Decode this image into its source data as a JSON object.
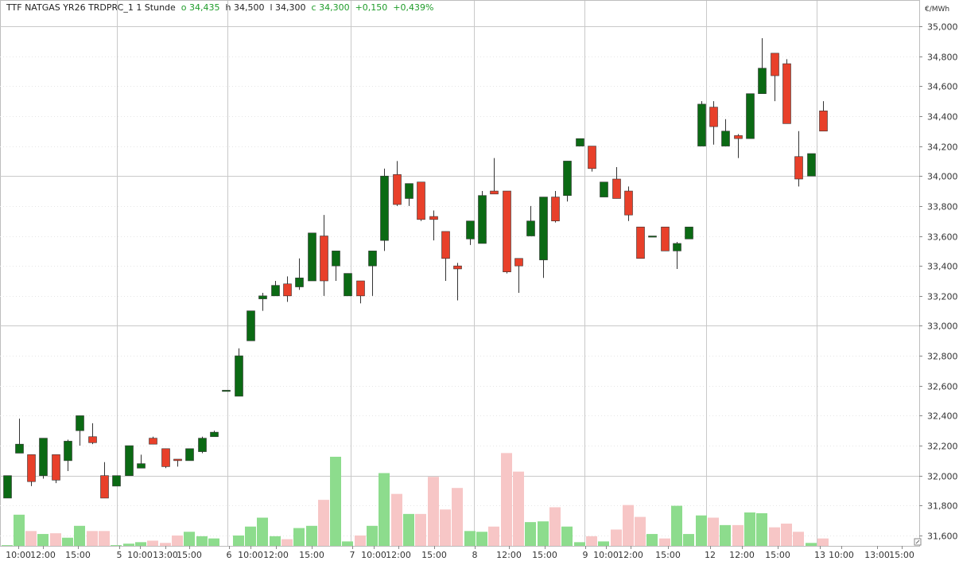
{
  "header": {
    "instrument": "TTF NATGAS YR26 TRDPRC_1",
    "interval": "1 Stunde",
    "open": "o 34,435",
    "high": "h 34,500",
    "low": "l 34,300",
    "close": "c 34,300",
    "change": "+0,150",
    "change_pct": "+0,439%"
  },
  "colors": {
    "up_candle": "#0b6a14",
    "down_candle": "#e8402a",
    "up_volume": "#8ddc8d",
    "down_volume": "#f7c6c6",
    "header_green": "#1f9c2a"
  },
  "chart_data": {
    "type": "candlestick",
    "unit": "€/MWh",
    "ylim": [
      31560,
      35080
    ],
    "y_ticks": [
      "35,000",
      "34,800",
      "34,600",
      "34,400",
      "34,200",
      "34,000",
      "33,800",
      "33,600",
      "33,400",
      "33,200",
      "33,000",
      "32,800",
      "32,600",
      "32,400",
      "32,200",
      "32,000",
      "31,800",
      "31,600"
    ],
    "y_tick_values": [
      35000,
      34800,
      34600,
      34400,
      34200,
      34000,
      33800,
      33600,
      33400,
      33200,
      33000,
      32800,
      32600,
      32400,
      32200,
      32000,
      31800,
      31600
    ],
    "x_labels": [
      "10:00",
      "12:00",
      "15:00",
      "5",
      "10:00",
      "13:00",
      "15:00",
      "6",
      "10:00",
      "12:00",
      "15:00",
      "7",
      "10:00",
      "12:00",
      "15:00",
      "8",
      "12:00",
      "15:00",
      "9",
      "10:00",
      "12:00",
      "15:00",
      "12",
      "12:00",
      "15:00",
      "13",
      "10:00",
      "13:00",
      "15:00"
    ],
    "volume_axis_max": 1500,
    "candles": [
      {
        "o": 31850,
        "h": 32000,
        "l": 31850,
        "c": 32000,
        "v": 10
      },
      {
        "o": 32150,
        "h": 32380,
        "l": 32150,
        "c": 32210,
        "v": 420
      },
      {
        "o": 32140,
        "h": 32140,
        "l": 31930,
        "c": 31960,
        "v": 200
      },
      {
        "o": 32000,
        "h": 32250,
        "l": 31980,
        "c": 32250,
        "v": 160
      },
      {
        "o": 32140,
        "h": 32140,
        "l": 31950,
        "c": 31970,
        "v": 170
      },
      {
        "o": 32100,
        "h": 32240,
        "l": 32030,
        "c": 32230,
        "v": 110
      },
      {
        "o": 32300,
        "h": 32400,
        "l": 32200,
        "c": 32400,
        "v": 270
      },
      {
        "o": 32260,
        "h": 32350,
        "l": 32210,
        "c": 32220,
        "v": 200
      },
      {
        "o": 32000,
        "h": 32090,
        "l": 31850,
        "c": 31850,
        "v": 200
      },
      {
        "o": 31930,
        "h": 32000,
        "l": 31930,
        "c": 32000,
        "v": 10
      },
      {
        "o": 32000,
        "h": 32200,
        "l": 32000,
        "c": 32200,
        "v": 30
      },
      {
        "o": 32050,
        "h": 32140,
        "l": 32050,
        "c": 32080,
        "v": 50
      },
      {
        "o": 32250,
        "h": 32260,
        "l": 32210,
        "c": 32210,
        "v": 70
      },
      {
        "o": 32180,
        "h": 32180,
        "l": 32050,
        "c": 32060,
        "v": 40
      },
      {
        "o": 32110,
        "h": 32110,
        "l": 32060,
        "c": 32100,
        "v": 140
      },
      {
        "o": 32100,
        "h": 32180,
        "l": 32100,
        "c": 32180,
        "v": 190
      },
      {
        "o": 32160,
        "h": 32260,
        "l": 32150,
        "c": 32250,
        "v": 130
      },
      {
        "o": 32260,
        "h": 32300,
        "l": 32260,
        "c": 32290,
        "v": 100
      },
      {
        "o": 32570,
        "h": 32570,
        "l": 32570,
        "c": 32570,
        "v": 0
      },
      {
        "o": 32530,
        "h": 32850,
        "l": 32530,
        "c": 32800,
        "v": 140
      },
      {
        "o": 32900,
        "h": 33100,
        "l": 32900,
        "c": 33100,
        "v": 260
      },
      {
        "o": 33180,
        "h": 33220,
        "l": 33100,
        "c": 33200,
        "v": 380
      },
      {
        "o": 33200,
        "h": 33300,
        "l": 33200,
        "c": 33270,
        "v": 130
      },
      {
        "o": 33280,
        "h": 33330,
        "l": 33160,
        "c": 33200,
        "v": 90
      },
      {
        "o": 33260,
        "h": 33450,
        "l": 33240,
        "c": 33320,
        "v": 240
      },
      {
        "o": 33300,
        "h": 33620,
        "l": 33300,
        "c": 33620,
        "v": 270
      },
      {
        "o": 33600,
        "h": 33740,
        "l": 33200,
        "c": 33300,
        "v": 620
      },
      {
        "o": 33400,
        "h": 33500,
        "l": 33300,
        "c": 33500,
        "v": 1200
      },
      {
        "o": 33200,
        "h": 33350,
        "l": 33200,
        "c": 33350,
        "v": 60
      },
      {
        "o": 33300,
        "h": 33300,
        "l": 33150,
        "c": 33200,
        "v": 140
      },
      {
        "o": 33400,
        "h": 33500,
        "l": 33200,
        "c": 33500,
        "v": 270
      },
      {
        "o": 33570,
        "h": 34050,
        "l": 33500,
        "c": 34000,
        "v": 980
      },
      {
        "o": 34010,
        "h": 34100,
        "l": 33800,
        "c": 33810,
        "v": 700
      },
      {
        "o": 33850,
        "h": 33950,
        "l": 33800,
        "c": 33950,
        "v": 430
      },
      {
        "o": 33960,
        "h": 33960,
        "l": 33700,
        "c": 33710,
        "v": 430
      },
      {
        "o": 33730,
        "h": 33770,
        "l": 33570,
        "c": 33710,
        "v": 930
      },
      {
        "o": 33630,
        "h": 33630,
        "l": 33300,
        "c": 33450,
        "v": 490
      },
      {
        "o": 33400,
        "h": 33420,
        "l": 33170,
        "c": 33380,
        "v": 780
      },
      {
        "o": 33580,
        "h": 33700,
        "l": 33540,
        "c": 33700,
        "v": 200
      },
      {
        "o": 33550,
        "h": 33900,
        "l": 33550,
        "c": 33870,
        "v": 190
      },
      {
        "o": 33900,
        "h": 34120,
        "l": 33880,
        "c": 33880,
        "v": 260
      },
      {
        "o": 33900,
        "h": 33900,
        "l": 33350,
        "c": 33360,
        "v": 1250
      },
      {
        "o": 33450,
        "h": 33450,
        "l": 33220,
        "c": 33400,
        "v": 1000
      },
      {
        "o": 33600,
        "h": 33800,
        "l": 33600,
        "c": 33700,
        "v": 320
      },
      {
        "o": 33440,
        "h": 33860,
        "l": 33320,
        "c": 33860,
        "v": 330
      },
      {
        "o": 33860,
        "h": 33900,
        "l": 33690,
        "c": 33700,
        "v": 520
      },
      {
        "o": 33870,
        "h": 34100,
        "l": 33830,
        "c": 34100,
        "v": 260
      },
      {
        "o": 34200,
        "h": 34250,
        "l": 34200,
        "c": 34250,
        "v": 50
      },
      {
        "o": 34200,
        "h": 34200,
        "l": 34030,
        "c": 34050,
        "v": 130
      },
      {
        "o": 33860,
        "h": 33960,
        "l": 33860,
        "c": 33960,
        "v": 60
      },
      {
        "o": 33980,
        "h": 34060,
        "l": 33850,
        "c": 33850,
        "v": 220
      },
      {
        "o": 33900,
        "h": 33930,
        "l": 33700,
        "c": 33740,
        "v": 550
      },
      {
        "o": 33660,
        "h": 33660,
        "l": 33450,
        "c": 33450,
        "v": 390
      },
      {
        "o": 33600,
        "h": 33600,
        "l": 33600,
        "c": 33600,
        "v": 160
      },
      {
        "o": 33660,
        "h": 33660,
        "l": 33500,
        "c": 33500,
        "v": 100
      },
      {
        "o": 33500,
        "h": 33560,
        "l": 33380,
        "c": 33550,
        "v": 540
      },
      {
        "o": 33580,
        "h": 33660,
        "l": 33580,
        "c": 33660,
        "v": 160
      },
      {
        "o": 34200,
        "h": 34500,
        "l": 34200,
        "c": 34480,
        "v": 410
      },
      {
        "o": 34460,
        "h": 34500,
        "l": 34210,
        "c": 34330,
        "v": 380
      },
      {
        "o": 34200,
        "h": 34380,
        "l": 34200,
        "c": 34300,
        "v": 280
      },
      {
        "o": 34270,
        "h": 34280,
        "l": 34120,
        "c": 34250,
        "v": 280
      },
      {
        "o": 34250,
        "h": 34550,
        "l": 34250,
        "c": 34550,
        "v": 450
      },
      {
        "o": 34550,
        "h": 34920,
        "l": 34550,
        "c": 34720,
        "v": 440
      },
      {
        "o": 34820,
        "h": 34820,
        "l": 34500,
        "c": 34670,
        "v": 250
      },
      {
        "o": 34750,
        "h": 34780,
        "l": 34350,
        "c": 34350,
        "v": 300
      },
      {
        "o": 34130,
        "h": 34300,
        "l": 33930,
        "c": 33980,
        "v": 190
      },
      {
        "o": 34000,
        "h": 34150,
        "l": 34000,
        "c": 34150,
        "v": 40
      },
      {
        "o": 34435,
        "h": 34500,
        "l": 34300,
        "c": 34300,
        "v": 100
      }
    ]
  }
}
